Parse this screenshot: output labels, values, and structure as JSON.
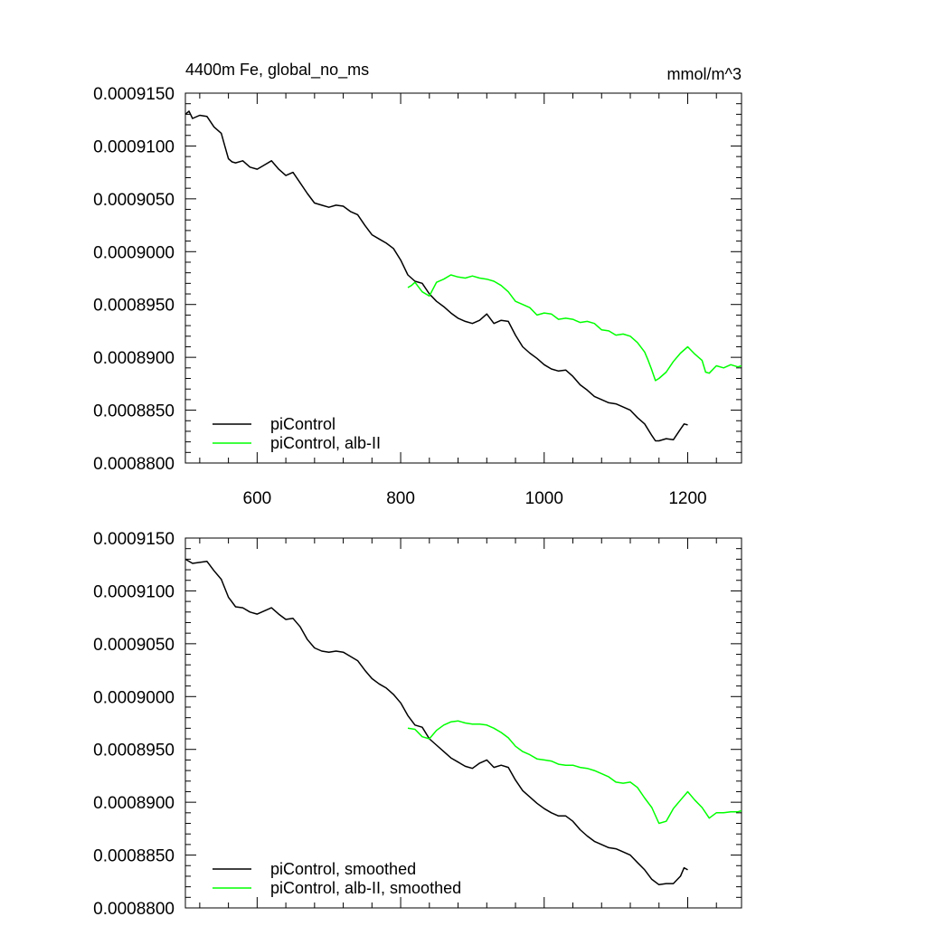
{
  "chart_data": [
    {
      "type": "line",
      "title": "4400m Fe, global_no_ms",
      "units": "mmol/m^3",
      "xlim": [
        500,
        1275
      ],
      "ylim": [
        0.00088,
        0.000915
      ],
      "xticks": [
        600,
        800,
        1000,
        1200
      ],
      "xtick_labels": [
        "600",
        "800",
        "1000",
        "1200"
      ],
      "yticks": [
        0.00088,
        0.000885,
        0.00089,
        0.000895,
        0.0009,
        0.000905,
        0.00091,
        0.000915
      ],
      "ytick_labels": [
        "0.0008800",
        "0.0008850",
        "0.0008900",
        "0.0008950",
        "0.0009000",
        "0.0009050",
        "0.0009100",
        "0.0009150"
      ],
      "legend_position": "bottom-left",
      "series": [
        {
          "name": "piControl",
          "color": "#000000",
          "x": [
            500,
            505,
            510,
            520,
            530,
            540,
            550,
            555,
            560,
            565,
            570,
            580,
            590,
            600,
            610,
            620,
            630,
            640,
            650,
            660,
            670,
            680,
            690,
            700,
            710,
            720,
            730,
            740,
            750,
            760,
            770,
            780,
            790,
            800,
            810,
            820,
            830,
            840,
            850,
            860,
            870,
            880,
            890,
            900,
            910,
            920,
            930,
            940,
            950,
            960,
            970,
            980,
            990,
            1000,
            1010,
            1020,
            1030,
            1040,
            1050,
            1060,
            1070,
            1080,
            1090,
            1100,
            1110,
            1120,
            1130,
            1140,
            1150,
            1155,
            1160,
            1170,
            1180,
            1190,
            1195,
            1200
          ],
          "values": [
            0.000913,
            0.0009133,
            0.0009126,
            0.0009129,
            0.0009128,
            0.0009118,
            0.0009112,
            0.00091,
            0.0009088,
            0.0009085,
            0.0009084,
            0.0009086,
            0.000908,
            0.0009078,
            0.0009082,
            0.0009086,
            0.0009078,
            0.0009072,
            0.0009075,
            0.0009065,
            0.0009055,
            0.0009046,
            0.0009044,
            0.0009042,
            0.0009044,
            0.0009043,
            0.0009038,
            0.0009035,
            0.0009025,
            0.0009016,
            0.0009012,
            0.0009008,
            0.0009003,
            0.0008992,
            0.0008978,
            0.0008972,
            0.000897,
            0.000896,
            0.0008953,
            0.0008948,
            0.0008942,
            0.0008937,
            0.0008934,
            0.0008932,
            0.0008935,
            0.0008941,
            0.0008932,
            0.0008935,
            0.0008934,
            0.0008921,
            0.000891,
            0.0008904,
            0.0008899,
            0.0008893,
            0.0008889,
            0.0008887,
            0.0008888,
            0.0008882,
            0.0008874,
            0.0008869,
            0.0008863,
            0.000886,
            0.0008857,
            0.0008856,
            0.0008853,
            0.000885,
            0.0008843,
            0.0008837,
            0.0008826,
            0.0008821,
            0.0008821,
            0.0008823,
            0.0008822,
            0.0008832,
            0.0008837,
            0.0008836
          ]
        },
        {
          "name": "piControl, alb-II",
          "color": "#00ff00",
          "x": [
            810,
            815,
            820,
            830,
            840,
            850,
            860,
            870,
            880,
            890,
            900,
            910,
            920,
            930,
            940,
            950,
            960,
            970,
            980,
            990,
            1000,
            1010,
            1020,
            1030,
            1040,
            1050,
            1060,
            1070,
            1080,
            1090,
            1100,
            1110,
            1120,
            1130,
            1140,
            1145,
            1150,
            1155,
            1160,
            1170,
            1180,
            1190,
            1200,
            1210,
            1220,
            1225,
            1230,
            1240,
            1250,
            1260,
            1270,
            1275
          ],
          "values": [
            0.0008966,
            0.0008968,
            0.0008971,
            0.0008962,
            0.0008958,
            0.0008971,
            0.0008974,
            0.0008978,
            0.0008976,
            0.0008975,
            0.0008977,
            0.0008975,
            0.0008974,
            0.0008972,
            0.0008968,
            0.0008962,
            0.0008953,
            0.000895,
            0.0008947,
            0.000894,
            0.0008942,
            0.0008941,
            0.0008936,
            0.0008937,
            0.0008936,
            0.0008933,
            0.0008934,
            0.0008932,
            0.0008926,
            0.0008925,
            0.0008921,
            0.0008922,
            0.000892,
            0.0008914,
            0.0008905,
            0.0008897,
            0.0008888,
            0.0008878,
            0.000888,
            0.0008886,
            0.0008896,
            0.0008904,
            0.000891,
            0.0008903,
            0.0008897,
            0.0008886,
            0.0008885,
            0.0008892,
            0.000889,
            0.0008893,
            0.0008891,
            0.0008892
          ]
        }
      ]
    },
    {
      "type": "line",
      "xlim": [
        500,
        1275
      ],
      "ylim": [
        0.00088,
        0.000915
      ],
      "xticks": [
        600,
        800,
        1000,
        1200
      ],
      "yticks": [
        0.00088,
        0.000885,
        0.00089,
        0.000895,
        0.0009,
        0.000905,
        0.00091,
        0.000915
      ],
      "ytick_labels": [
        "0.0008800",
        "0.0008850",
        "0.0008900",
        "0.0008950",
        "0.0009000",
        "0.0009050",
        "0.0009100",
        "0.0009150"
      ],
      "legend_position": "bottom-left",
      "series": [
        {
          "name": "piControl, smoothed",
          "color": "#000000",
          "x": [
            500,
            510,
            520,
            530,
            540,
            550,
            560,
            570,
            580,
            590,
            600,
            610,
            620,
            630,
            640,
            650,
            660,
            670,
            680,
            690,
            700,
            710,
            720,
            730,
            740,
            750,
            760,
            770,
            780,
            790,
            800,
            810,
            820,
            830,
            840,
            850,
            860,
            870,
            880,
            890,
            900,
            910,
            920,
            930,
            940,
            950,
            960,
            970,
            980,
            990,
            1000,
            1010,
            1020,
            1030,
            1040,
            1050,
            1060,
            1070,
            1080,
            1090,
            1100,
            1110,
            1120,
            1130,
            1140,
            1150,
            1160,
            1170,
            1180,
            1190,
            1195,
            1200
          ],
          "values": [
            0.000913,
            0.0009126,
            0.0009127,
            0.0009128,
            0.0009119,
            0.0009111,
            0.0009094,
            0.0009085,
            0.0009084,
            0.000908,
            0.0009078,
            0.0009081,
            0.0009084,
            0.0009078,
            0.0009073,
            0.0009074,
            0.0009066,
            0.0009054,
            0.0009046,
            0.0009043,
            0.0009042,
            0.0009043,
            0.0009042,
            0.0009038,
            0.0009034,
            0.0009025,
            0.0009017,
            0.0009012,
            0.0009008,
            0.0009002,
            0.0008994,
            0.0008982,
            0.0008973,
            0.0008971,
            0.000896,
            0.0008954,
            0.0008948,
            0.0008942,
            0.0008938,
            0.0008934,
            0.0008932,
            0.0008937,
            0.000894,
            0.0008933,
            0.0008935,
            0.0008933,
            0.0008921,
            0.0008911,
            0.0008905,
            0.0008899,
            0.0008894,
            0.000889,
            0.0008887,
            0.0008887,
            0.0008882,
            0.0008874,
            0.0008868,
            0.0008863,
            0.000886,
            0.0008857,
            0.0008856,
            0.0008853,
            0.000885,
            0.0008843,
            0.0008836,
            0.0008827,
            0.0008822,
            0.0008823,
            0.0008823,
            0.000883,
            0.0008838,
            0.0008836
          ]
        },
        {
          "name": "piControl, alb-II, smoothed",
          "color": "#00ff00",
          "x": [
            810,
            820,
            830,
            840,
            850,
            860,
            870,
            880,
            890,
            900,
            910,
            920,
            930,
            940,
            950,
            960,
            970,
            980,
            990,
            1000,
            1010,
            1020,
            1030,
            1040,
            1050,
            1060,
            1070,
            1080,
            1090,
            1100,
            1110,
            1120,
            1130,
            1140,
            1150,
            1160,
            1170,
            1180,
            1190,
            1200,
            1210,
            1220,
            1230,
            1240,
            1250,
            1260,
            1270,
            1275
          ],
          "values": [
            0.000897,
            0.0008969,
            0.0008962,
            0.000896,
            0.0008968,
            0.0008973,
            0.0008976,
            0.0008977,
            0.0008975,
            0.0008974,
            0.0008974,
            0.0008973,
            0.000897,
            0.0008966,
            0.0008961,
            0.0008953,
            0.0008948,
            0.0008945,
            0.0008941,
            0.000894,
            0.0008939,
            0.0008936,
            0.0008935,
            0.0008935,
            0.0008933,
            0.0008932,
            0.000893,
            0.0008927,
            0.0008924,
            0.0008919,
            0.0008918,
            0.0008919,
            0.0008914,
            0.0008904,
            0.0008895,
            0.000888,
            0.0008882,
            0.0008894,
            0.0008902,
            0.000891,
            0.0008902,
            0.0008895,
            0.0008885,
            0.000889,
            0.000889,
            0.0008891,
            0.0008891,
            0.0008892
          ]
        }
      ]
    }
  ]
}
